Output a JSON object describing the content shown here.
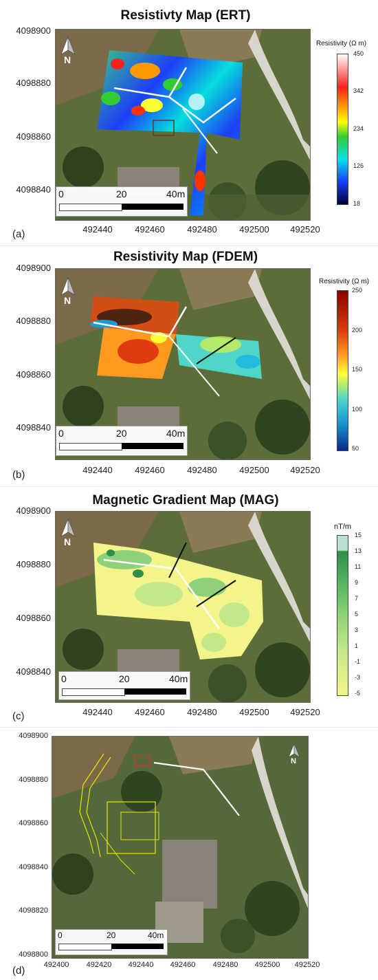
{
  "panels": [
    {
      "id": "a",
      "title": "Resistivty Map (ERT)",
      "label": "(a)",
      "y_ticks": [
        "4098900",
        "4098880",
        "4098860",
        "4098840"
      ],
      "x_ticks": [
        "492440",
        "492460",
        "492480",
        "492500",
        "492520"
      ],
      "colorbar": {
        "title": "Resistivity (Ω m)",
        "ticks": [
          "450",
          "342",
          "234",
          "126",
          "18"
        ],
        "colors": [
          "#ffffff",
          "#ff2020",
          "#ff9a00",
          "#ffff00",
          "#33cc33",
          "#00e5e5",
          "#1a3cff",
          "#000033"
        ]
      },
      "scale": {
        "t0": "0",
        "t1": "20",
        "t2": "40m"
      },
      "north": "N"
    },
    {
      "id": "b",
      "title": "Resistivity Map (FDEM)",
      "label": "(b)",
      "y_ticks": [
        "4098900",
        "4098880",
        "4098860",
        "4098840"
      ],
      "x_ticks": [
        "492440",
        "492460",
        "492480",
        "492500",
        "492520"
      ],
      "colorbar": {
        "title": "Resistivity (Ω m)",
        "ticks": [
          "250",
          "200",
          "150",
          "100",
          "50"
        ],
        "colors": [
          "#8b0000",
          "#e03a10",
          "#ff9a20",
          "#ffff33",
          "#4fd6c8",
          "#1a9ad6",
          "#0a2a8a"
        ]
      },
      "scale": {
        "t0": "0",
        "t1": "20",
        "t2": "40m"
      },
      "north": "N"
    },
    {
      "id": "c",
      "title": "Magnetic Gradient Map (MAG)",
      "label": "(c)",
      "y_ticks": [
        "4098900",
        "4098880",
        "4098860",
        "4098840"
      ],
      "x_ticks": [
        "492440",
        "492460",
        "492480",
        "492500",
        "492520"
      ],
      "colorbar": {
        "title": "nT/m",
        "ticks": [
          "15",
          "13",
          "11",
          "9",
          "7",
          "5",
          "3",
          "1",
          "-1",
          "-3",
          "-5"
        ],
        "colors": [
          "#b9e0cc",
          "#2f8f4a",
          "#55b560",
          "#8fd17a",
          "#c4e88a",
          "#f3f58a"
        ]
      },
      "scale": {
        "t0": "0",
        "t1": "20",
        "t2": "40m"
      },
      "north": "N"
    },
    {
      "id": "d",
      "label": "(d)",
      "y_ticks": [
        "4098900",
        "4098880",
        "4098860",
        "4098840",
        "4098820",
        "4098800"
      ],
      "x_ticks": [
        "492400",
        "492420",
        "492440",
        "492460",
        "492480",
        "492500",
        "492520"
      ],
      "scale": {
        "t0": "0",
        "t1": "20",
        "t2": "40m"
      },
      "north": "N"
    }
  ]
}
